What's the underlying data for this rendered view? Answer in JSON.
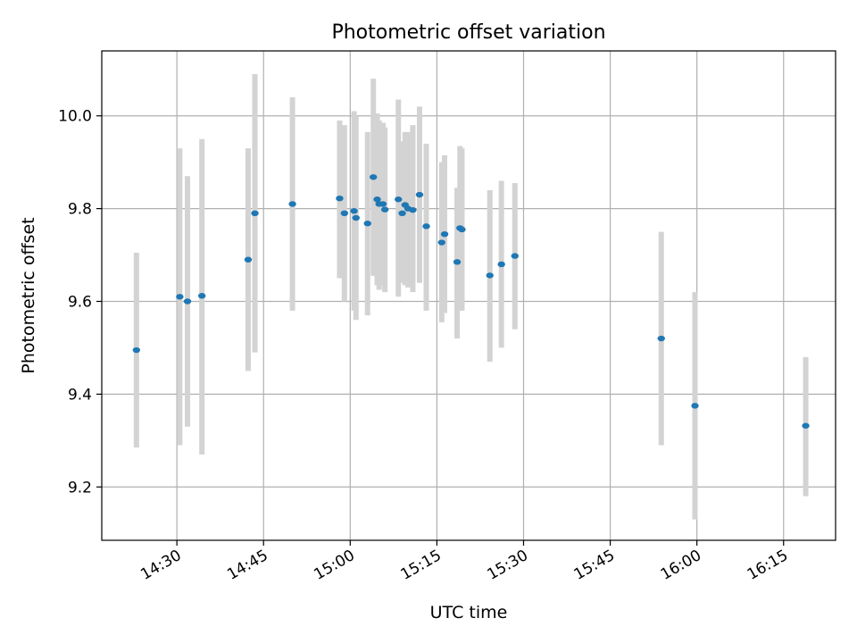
{
  "chart_data": {
    "type": "scatter",
    "title": "Photometric offset variation",
    "xlabel": "UTC time",
    "ylabel": "Photometric offset",
    "x_unit": "UTC time (hh:mm)",
    "x_ticks": [
      "14:30",
      "14:45",
      "15:00",
      "15:15",
      "15:30",
      "15:45",
      "16:00",
      "16:15"
    ],
    "y_ticks": [
      9.2,
      9.4,
      9.6,
      9.8,
      10.0
    ],
    "xlim": [
      "14:17",
      "16:24"
    ],
    "ylim": [
      9.085,
      10.14
    ],
    "grid": true,
    "colors": {
      "marker": "#1f77b4",
      "errorbar": "#d3d3d3",
      "grid": "#b0b0b0"
    },
    "points": [
      {
        "x": "14:23",
        "y": 9.495,
        "lo": 9.285,
        "hi": 9.705
      },
      {
        "x": "14:30:30",
        "y": 9.61,
        "lo": 9.29,
        "hi": 9.93
      },
      {
        "x": "14:31:50",
        "y": 9.6,
        "lo": 9.33,
        "hi": 9.87
      },
      {
        "x": "14:34:20",
        "y": 9.612,
        "lo": 9.27,
        "hi": 9.95
      },
      {
        "x": "14:42:20",
        "y": 9.69,
        "lo": 9.45,
        "hi": 9.93
      },
      {
        "x": "14:43:30",
        "y": 9.79,
        "lo": 9.49,
        "hi": 10.09
      },
      {
        "x": "14:50",
        "y": 9.81,
        "lo": 9.58,
        "hi": 10.04
      },
      {
        "x": "14:58:10",
        "y": 9.822,
        "lo": 9.65,
        "hi": 9.99
      },
      {
        "x": "14:59",
        "y": 9.79,
        "lo": 9.6,
        "hi": 9.98
      },
      {
        "x": "15:00:40",
        "y": 9.795,
        "lo": 9.58,
        "hi": 10.01
      },
      {
        "x": "15:01",
        "y": 9.78,
        "lo": 9.56,
        "hi": 10.0
      },
      {
        "x": "15:03",
        "y": 9.768,
        "lo": 9.57,
        "hi": 9.965
      },
      {
        "x": "15:04",
        "y": 9.868,
        "lo": 9.655,
        "hi": 10.08
      },
      {
        "x": "15:04:40",
        "y": 9.82,
        "lo": 9.635,
        "hi": 10.005
      },
      {
        "x": "15:05",
        "y": 9.81,
        "lo": 9.625,
        "hi": 9.99
      },
      {
        "x": "15:05:40",
        "y": 9.81,
        "lo": 9.635,
        "hi": 9.985
      },
      {
        "x": "15:06",
        "y": 9.798,
        "lo": 9.62,
        "hi": 9.975
      },
      {
        "x": "15:08:20",
        "y": 9.82,
        "lo": 9.61,
        "hi": 10.035
      },
      {
        "x": "15:09",
        "y": 9.79,
        "lo": 9.64,
        "hi": 9.945
      },
      {
        "x": "15:09:30",
        "y": 9.808,
        "lo": 9.635,
        "hi": 9.965
      },
      {
        "x": "15:10",
        "y": 9.8,
        "lo": 9.63,
        "hi": 9.965
      },
      {
        "x": "15:10:50",
        "y": 9.797,
        "lo": 9.62,
        "hi": 9.98
      },
      {
        "x": "15:12",
        "y": 9.83,
        "lo": 9.64,
        "hi": 10.02
      },
      {
        "x": "15:13:10",
        "y": 9.762,
        "lo": 9.58,
        "hi": 9.94
      },
      {
        "x": "15:15:50",
        "y": 9.727,
        "lo": 9.555,
        "hi": 9.9
      },
      {
        "x": "15:16:20",
        "y": 9.745,
        "lo": 9.575,
        "hi": 9.915
      },
      {
        "x": "15:18:30",
        "y": 9.685,
        "lo": 9.52,
        "hi": 9.845
      },
      {
        "x": "15:19",
        "y": 9.758,
        "lo": 9.58,
        "hi": 9.935
      },
      {
        "x": "15:19:20",
        "y": 9.755,
        "lo": 9.58,
        "hi": 9.93
      },
      {
        "x": "15:24:10",
        "y": 9.656,
        "lo": 9.47,
        "hi": 9.84
      },
      {
        "x": "15:26:10",
        "y": 9.68,
        "lo": 9.5,
        "hi": 9.86
      },
      {
        "x": "15:28:30",
        "y": 9.698,
        "lo": 9.54,
        "hi": 9.855
      },
      {
        "x": "15:53:50",
        "y": 9.52,
        "lo": 9.29,
        "hi": 9.75
      },
      {
        "x": "15:59:40",
        "y": 9.375,
        "lo": 9.13,
        "hi": 9.62
      },
      {
        "x": "16:18:50",
        "y": 9.332,
        "lo": 9.18,
        "hi": 9.48
      }
    ]
  }
}
